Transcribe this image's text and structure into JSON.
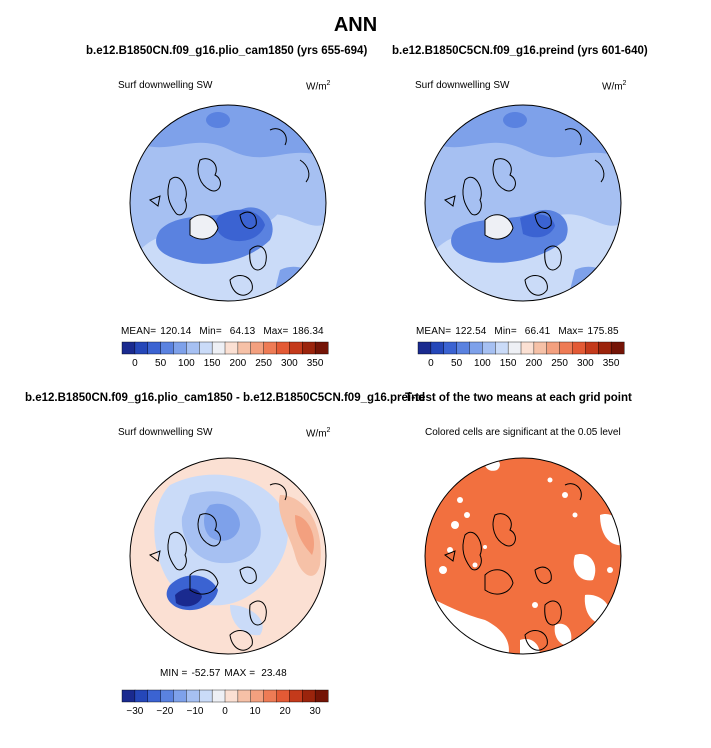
{
  "page": {
    "title": "ANN"
  },
  "colors": {
    "land": "#2c4d97",
    "ocean_pale": "#f6d7c5",
    "sig": "#f2703f",
    "blue_scale": [
      "#1a2a8f",
      "#2547b9",
      "#3b63d2",
      "#5a82e0",
      "#7ea1ea",
      "#a6c0f2",
      "#cadbf8",
      "#eef0f5"
    ],
    "red_scale": [
      "#fbe0d3",
      "#f6c1a7",
      "#f3a07f",
      "#ee7b55",
      "#e35a35",
      "#c43a1b",
      "#9b240c",
      "#741406"
    ]
  },
  "chart_data": [
    {
      "type": "heatmap",
      "title": "b.e12.B1850CN.f09_g16.plio_cam1850 (yrs 655-694)",
      "variable": "Surf downwelling SW",
      "units_base": "W/m",
      "units_exp": "2",
      "stats": {
        "mean_label": "MEAN=",
        "mean": "120.14",
        "min_label": "Min=",
        "min": "64.13",
        "max_label": "Max=",
        "max": "186.34"
      },
      "colorbar": {
        "ticks": [
          "0",
          "50",
          "100",
          "150",
          "200",
          "250",
          "300",
          "350"
        ]
      }
    },
    {
      "type": "heatmap",
      "title": "b.e12.B1850C5CN.f09_g16.preind (yrs 601-640)",
      "variable": "Surf downwelling SW",
      "units_base": "W/m",
      "units_exp": "2",
      "stats": {
        "mean_label": "MEAN=",
        "mean": "122.54",
        "min_label": "Min=",
        "min": "66.41",
        "max_label": "Max=",
        "max": "175.85"
      },
      "colorbar": {
        "ticks": [
          "0",
          "50",
          "100",
          "150",
          "200",
          "250",
          "300",
          "350"
        ]
      }
    },
    {
      "type": "heatmap",
      "title": "b.e12.B1850CN.f09_g16.plio_cam1850 - b.e12.B1850C5CN.f09_g16.preind",
      "variable": "Surf downwelling SW",
      "units_base": "W/m",
      "units_exp": "2",
      "stats": {
        "min_label": "MIN =",
        "min": "-52.57",
        "max_label": "MAX =",
        "max": "23.48"
      },
      "colorbar": {
        "ticks": [
          "−30",
          "−20",
          "−10",
          "0",
          "10",
          "20",
          "30"
        ]
      }
    },
    {
      "type": "heatmap",
      "title": "T-test of the two means at each grid point",
      "subtitle": "Colored cells are significant at the 0.05 level"
    }
  ]
}
